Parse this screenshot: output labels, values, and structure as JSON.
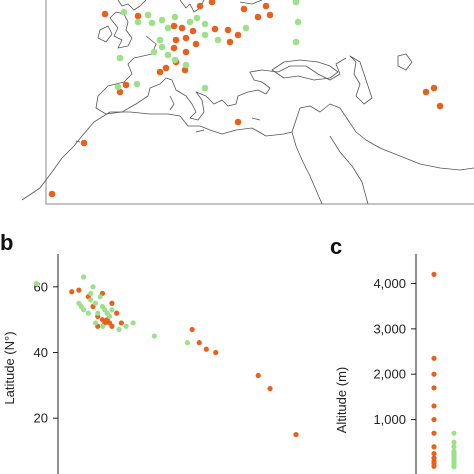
{
  "colors": {
    "orange": "#e8601c",
    "green": "#9de08a",
    "coast": "#555555",
    "axis": "#222222"
  },
  "panels": {
    "b": {
      "letter": "b",
      "ylabel": "Latitude (N°)",
      "ylim": [
        3,
        70
      ],
      "yticks": [
        20,
        40,
        60
      ],
      "xlim": [
        0,
        1
      ]
    },
    "c": {
      "letter": "c",
      "ylabel": "Altitude (m)",
      "ylim": [
        -200,
        4650
      ],
      "yticks": [
        1000,
        2000,
        3000,
        4000
      ],
      "ytick_labels": [
        "1,000",
        "2,000",
        "3,000",
        "4,000"
      ]
    }
  },
  "chart_data": [
    {
      "panel": "a",
      "type": "scatter",
      "title": "",
      "xlabel": "",
      "ylabel": "",
      "note": "",
      "series": [
        {
          "color": "#e8601c",
          "points": [
            [
              105,
              14
            ],
            [
              138,
              16
            ],
            [
              200,
              6
            ],
            [
              212,
              2
            ],
            [
              244,
              9
            ],
            [
              258,
              17
            ],
            [
              266,
              6
            ],
            [
              270,
              15
            ],
            [
              174,
              26
            ],
            [
              182,
              28
            ],
            [
              193,
              31
            ],
            [
              215,
              29
            ],
            [
              228,
              30
            ],
            [
              176,
              40
            ],
            [
              186,
              38
            ],
            [
              174,
              48
            ],
            [
              186,
              52
            ],
            [
              196,
              44
            ],
            [
              230,
              42
            ],
            [
              238,
              35
            ],
            [
              176,
              62
            ],
            [
              166,
              68
            ],
            [
              185,
              70
            ],
            [
              126,
              85
            ],
            [
              120,
              92
            ],
            [
              160,
              72
            ],
            [
              434,
              88
            ],
            [
              426,
              92
            ],
            [
              440,
              106
            ],
            [
              238,
              122
            ],
            [
              84,
              143
            ],
            [
              52,
              194
            ]
          ]
        },
        {
          "color": "#9de08a",
          "points": [
            [
              124,
              12
            ],
            [
              138,
              22
            ],
            [
              148,
              15
            ],
            [
              152,
              23
            ],
            [
              162,
              20
            ],
            [
              168,
              28
            ],
            [
              175,
              17
            ],
            [
              190,
              22
            ],
            [
              197,
              18
            ],
            [
              205,
              24
            ],
            [
              296,
              2
            ],
            [
              298,
              22
            ],
            [
              205,
              35
            ],
            [
              218,
              40
            ],
            [
              160,
              40
            ],
            [
              162,
              47
            ],
            [
              168,
              55
            ],
            [
              246,
              28
            ],
            [
              154,
              52
            ],
            [
              186,
              65
            ],
            [
              296,
              42
            ],
            [
              120,
              58
            ],
            [
              137,
              84
            ],
            [
              205,
              88
            ],
            [
              118,
              87
            ],
            [
              175,
              60
            ]
          ]
        }
      ]
    },
    {
      "panel": "b",
      "type": "scatter",
      "ylabel": "Latitude (N°)",
      "ylim": [
        3,
        70
      ],
      "series": [
        {
          "color": "#e8601c",
          "points": [
            [
              0.05,
              58.5
            ],
            [
              0.08,
              59
            ],
            [
              0.12,
              57
            ],
            [
              0.14,
              54
            ],
            [
              0.16,
              51
            ],
            [
              0.16,
              48
            ],
            [
              0.18,
              50
            ],
            [
              0.18,
              58
            ],
            [
              0.19,
              49
            ],
            [
              0.2,
              50
            ],
            [
              0.21,
              49
            ],
            [
              0.22,
              48
            ],
            [
              0.22,
              55
            ],
            [
              0.24,
              52
            ],
            [
              0.26,
              49
            ],
            [
              0.56,
              47
            ],
            [
              0.59,
              43
            ],
            [
              0.62,
              41
            ],
            [
              0.66,
              40
            ],
            [
              0.84,
              33
            ],
            [
              0.89,
              29
            ],
            [
              1.0,
              15
            ]
          ]
        },
        {
          "color": "#9de08a",
          "points": [
            [
              -0.1,
              61
            ],
            [
              0.1,
              63
            ],
            [
              0.14,
              60
            ],
            [
              0.13,
              58
            ],
            [
              0.13,
              56
            ],
            [
              0.08,
              55
            ],
            [
              0.09,
              54
            ],
            [
              0.1,
              53
            ],
            [
              0.12,
              52
            ],
            [
              0.15,
              55
            ],
            [
              0.17,
              57
            ],
            [
              0.18,
              54
            ],
            [
              0.19,
              53
            ],
            [
              0.2,
              52
            ],
            [
              0.21,
              51
            ],
            [
              0.22,
              53
            ],
            [
              0.15,
              49
            ],
            [
              0.16,
              52
            ],
            [
              0.18,
              48
            ],
            [
              0.25,
              47
            ],
            [
              0.28,
              48
            ],
            [
              0.31,
              49
            ],
            [
              0.4,
              45
            ],
            [
              0.54,
              43
            ]
          ]
        }
      ]
    },
    {
      "panel": "c",
      "type": "scatter",
      "ylabel": "Altitude (m)",
      "ylim": [
        -200,
        4650
      ],
      "series": [
        {
          "color": "#e8601c",
          "points": [
            [
              0,
              4200
            ],
            [
              0,
              2350
            ],
            [
              0,
              2000
            ],
            [
              0,
              1700
            ],
            [
              0,
              1300
            ],
            [
              0,
              1000
            ],
            [
              0,
              700
            ],
            [
              0,
              400
            ],
            [
              0,
              250
            ],
            [
              0,
              150
            ],
            [
              0,
              80
            ],
            [
              0,
              30
            ],
            [
              0,
              -30
            ]
          ]
        },
        {
          "color": "#9de08a",
          "points": [
            [
              1,
              700
            ],
            [
              1,
              500
            ],
            [
              1,
              400
            ],
            [
              1,
              300
            ],
            [
              1,
              250
            ],
            [
              1,
              200
            ],
            [
              1,
              150
            ],
            [
              1,
              100
            ],
            [
              1,
              50
            ],
            [
              1,
              0
            ],
            [
              1,
              -40
            ]
          ]
        }
      ]
    }
  ]
}
